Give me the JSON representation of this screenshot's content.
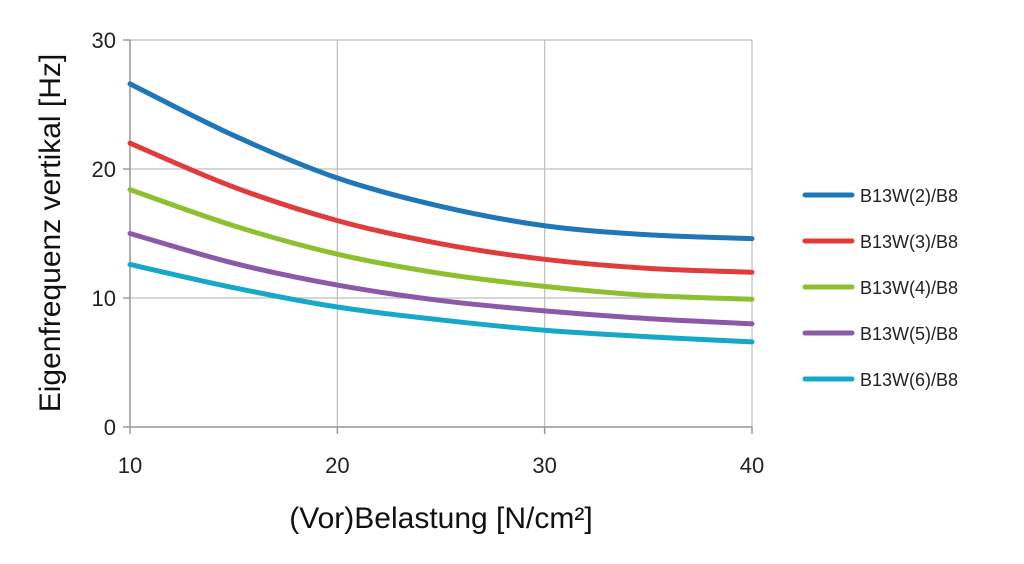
{
  "chart_data": {
    "type": "line",
    "title": "",
    "xlabel": "(Vor)Belastung [N/cm²]",
    "ylabel": "Eigenfrequenz vertikal [Hz]",
    "xlim": [
      10,
      40
    ],
    "ylim": [
      0,
      30
    ],
    "xticks": [
      10,
      20,
      30,
      40
    ],
    "yticks": [
      0,
      10,
      20,
      30
    ],
    "grid": true,
    "legend_position": "right",
    "x": [
      10,
      15,
      20,
      25,
      30,
      35,
      40
    ],
    "series": [
      {
        "name": "B13W(2)/B8",
        "color": "#1f77b8",
        "values": [
          26.6,
          22.6,
          19.3,
          17.1,
          15.6,
          14.9,
          14.6
        ]
      },
      {
        "name": "B13W(3)/B8",
        "color": "#e03c3c",
        "values": [
          22.0,
          18.6,
          16.0,
          14.2,
          13.0,
          12.3,
          12.0
        ]
      },
      {
        "name": "B13W(4)/B8",
        "color": "#8fbf2e",
        "values": [
          18.4,
          15.6,
          13.4,
          11.9,
          10.9,
          10.2,
          9.9
        ]
      },
      {
        "name": "B13W(5)/B8",
        "color": "#8a5aa8",
        "values": [
          15.0,
          12.7,
          11.0,
          9.8,
          9.0,
          8.4,
          8.0
        ]
      },
      {
        "name": "B13W(6)/B8",
        "color": "#16a8c8",
        "values": [
          12.6,
          10.8,
          9.3,
          8.3,
          7.5,
          7.0,
          6.6
        ]
      }
    ]
  }
}
